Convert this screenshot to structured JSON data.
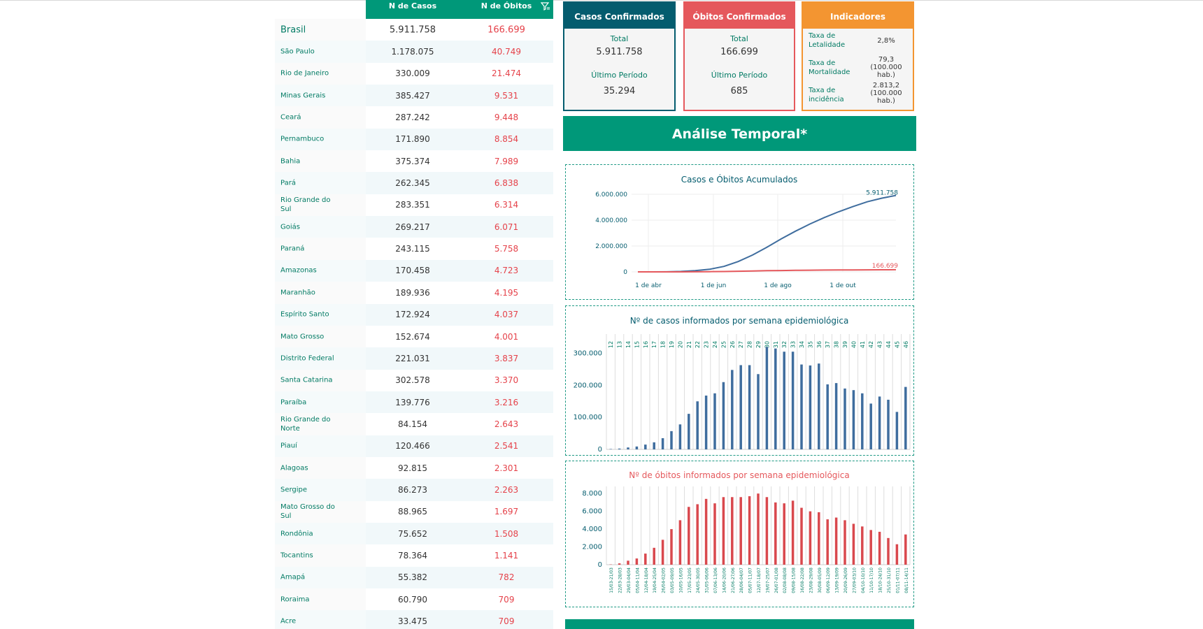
{
  "table": {
    "headers": {
      "cases": "N de Casos",
      "deaths": "N de Óbitos"
    },
    "rows": [
      {
        "name": "Brasil",
        "cases": "5.911.758",
        "deaths": "166.699"
      },
      {
        "name": "São Paulo",
        "cases": "1.178.075",
        "deaths": "40.749"
      },
      {
        "name": "Rio de Janeiro",
        "cases": "330.009",
        "deaths": "21.474"
      },
      {
        "name": "Minas Gerais",
        "cases": "385.427",
        "deaths": "9.531"
      },
      {
        "name": "Ceará",
        "cases": "287.242",
        "deaths": "9.448"
      },
      {
        "name": "Pernambuco",
        "cases": "171.890",
        "deaths": "8.854"
      },
      {
        "name": "Bahia",
        "cases": "375.374",
        "deaths": "7.989"
      },
      {
        "name": "Pará",
        "cases": "262.345",
        "deaths": "6.838"
      },
      {
        "name": "Rio Grande do Sul",
        "cases": "283.351",
        "deaths": "6.314"
      },
      {
        "name": "Goiás",
        "cases": "269.217",
        "deaths": "6.071"
      },
      {
        "name": "Paraná",
        "cases": "243.115",
        "deaths": "5.758"
      },
      {
        "name": "Amazonas",
        "cases": "170.458",
        "deaths": "4.723"
      },
      {
        "name": "Maranhão",
        "cases": "189.936",
        "deaths": "4.195"
      },
      {
        "name": "Espírito Santo",
        "cases": "172.924",
        "deaths": "4.037"
      },
      {
        "name": "Mato Grosso",
        "cases": "152.674",
        "deaths": "4.001"
      },
      {
        "name": "Distrito Federal",
        "cases": "221.031",
        "deaths": "3.837"
      },
      {
        "name": "Santa Catarina",
        "cases": "302.578",
        "deaths": "3.370"
      },
      {
        "name": "Paraíba",
        "cases": "139.776",
        "deaths": "3.216"
      },
      {
        "name": "Rio Grande do Norte",
        "cases": "84.154",
        "deaths": "2.643"
      },
      {
        "name": "Piauí",
        "cases": "120.466",
        "deaths": "2.541"
      },
      {
        "name": "Alagoas",
        "cases": "92.815",
        "deaths": "2.301"
      },
      {
        "name": "Sergipe",
        "cases": "86.273",
        "deaths": "2.263"
      },
      {
        "name": "Mato Grosso do Sul",
        "cases": "88.965",
        "deaths": "1.697"
      },
      {
        "name": "Rondônia",
        "cases": "75.652",
        "deaths": "1.508"
      },
      {
        "name": "Tocantins",
        "cases": "78.364",
        "deaths": "1.141"
      },
      {
        "name": "Amapá",
        "cases": "55.382",
        "deaths": "782"
      },
      {
        "name": "Roraima",
        "cases": "60.790",
        "deaths": "709"
      },
      {
        "name": "Acre",
        "cases": "33.475",
        "deaths": "709"
      }
    ]
  },
  "cards": {
    "confirmed": {
      "title": "Casos Confirmados",
      "total_label": "Total",
      "total": "5.911.758",
      "last_label": "Último Período",
      "last": "35.294"
    },
    "deaths": {
      "title": "Óbitos Confirmados",
      "total_label": "Total",
      "total": "166.699",
      "last_label": "Último Período",
      "last": "685"
    },
    "indicators": {
      "title": "Indicadores",
      "items": [
        {
          "label": "Taxa de Letalidade",
          "value": "2,8%"
        },
        {
          "label": "Taxa de Mortalidade",
          "value": "79,3 (100.000 hab.)"
        },
        {
          "label": "Taxa de incidência",
          "value": "2.813,2 (100.000 hab.)"
        }
      ]
    }
  },
  "section_title": "Análise Temporal*",
  "colors": {
    "green": "#009879",
    "teal": "#045c6e",
    "red": "#e5585c",
    "orange": "#f39531",
    "blue": "#3f6d9e",
    "bar_red": "#d9484d"
  },
  "chart_data": [
    {
      "type": "line",
      "title": "Casos e Óbitos Acumulados",
      "x_ticks": [
        "1 de abr",
        "1 de jun",
        "1 de ago",
        "1 de out"
      ],
      "y_ticks": [
        "0",
        "2.000.000",
        "4.000.000",
        "6.000.000"
      ],
      "ylim": [
        0,
        6000000
      ],
      "series": [
        {
          "values": [
            0,
            2000,
            8000,
            30000,
            90000,
            200000,
            420000,
            800000,
            1300000,
            1900000,
            2550000,
            3150000,
            3700000,
            4200000,
            4650000,
            5050000,
            5420000,
            5700000,
            5911758
          ],
          "end_label": "5.911.758"
        },
        {
          "values": [
            0,
            100,
            500,
            2000,
            6000,
            14000,
            28000,
            48000,
            70000,
            90000,
            105000,
            118000,
            128000,
            138000,
            146000,
            153000,
            159000,
            163000,
            166699
          ],
          "end_label": "166.699"
        }
      ],
      "grid": true
    },
    {
      "type": "bar",
      "title": "Nº de casos informados por semana epidemiológica",
      "categories": [
        "12",
        "13",
        "14",
        "15",
        "16",
        "17",
        "18",
        "19",
        "20",
        "21",
        "22",
        "23",
        "24",
        "25",
        "26",
        "27",
        "28",
        "29",
        "30",
        "31",
        "32",
        "33",
        "34",
        "35",
        "36",
        "37",
        "38",
        "39",
        "40",
        "41",
        "42",
        "43",
        "44",
        "45",
        "46"
      ],
      "values": [
        1200,
        2500,
        6000,
        9000,
        15000,
        22000,
        35000,
        57000,
        78000,
        111000,
        150000,
        168000,
        175000,
        210000,
        248000,
        263000,
        263000,
        235000,
        320000,
        315000,
        305000,
        305000,
        265000,
        262000,
        268000,
        203000,
        207000,
        190000,
        185000,
        175000,
        143000,
        165000,
        155000,
        117000,
        195000
      ],
      "y_ticks": [
        "0",
        "100.000",
        "200.000",
        "300.000"
      ],
      "ylim": [
        0,
        360000
      ],
      "grid": true
    },
    {
      "type": "bar",
      "title": "Nº de óbitos informados por semana epidemiológica",
      "categories": [
        "15/03-21/03",
        "22/03-28/03",
        "29/03-04/04",
        "05/04-11/04",
        "12/04-18/04",
        "19/04-25/04",
        "26/04-02/05",
        "03/05-09/05",
        "10/05-16/05",
        "17/05-23/05",
        "24/05-30/05",
        "31/05-06/06",
        "07/06-13/06",
        "14/06-20/06",
        "21/06-27/06",
        "28/06-04/07",
        "05/07-11/07",
        "12/07-18/07",
        "19/07-25/07",
        "26/07-01/08",
        "02/08-08/08",
        "09/08-15/08",
        "16/08-22/08",
        "23/08-29/08",
        "30/08-05/09",
        "06/09-12/09",
        "13/09-19/09",
        "20/09-26/09",
        "27/09-03/10",
        "04/10-10/10",
        "11/10-17/10",
        "18/10-24/10",
        "25/10-31/10",
        "01/11-07/11",
        "08/11-14/11"
      ],
      "values": [
        30,
        150,
        450,
        700,
        1250,
        1900,
        2800,
        4000,
        5000,
        6500,
        6800,
        7400,
        6900,
        7600,
        7600,
        7600,
        7700,
        8000,
        7600,
        7000,
        6900,
        7200,
        6400,
        6000,
        5900,
        5100,
        5300,
        5000,
        4600,
        4300,
        3900,
        3700,
        3000,
        2300,
        3400
      ],
      "y_ticks": [
        "0",
        "2.000",
        "4.000",
        "6.000",
        "8.000"
      ],
      "ylim": [
        0,
        8800
      ],
      "grid": true
    }
  ]
}
